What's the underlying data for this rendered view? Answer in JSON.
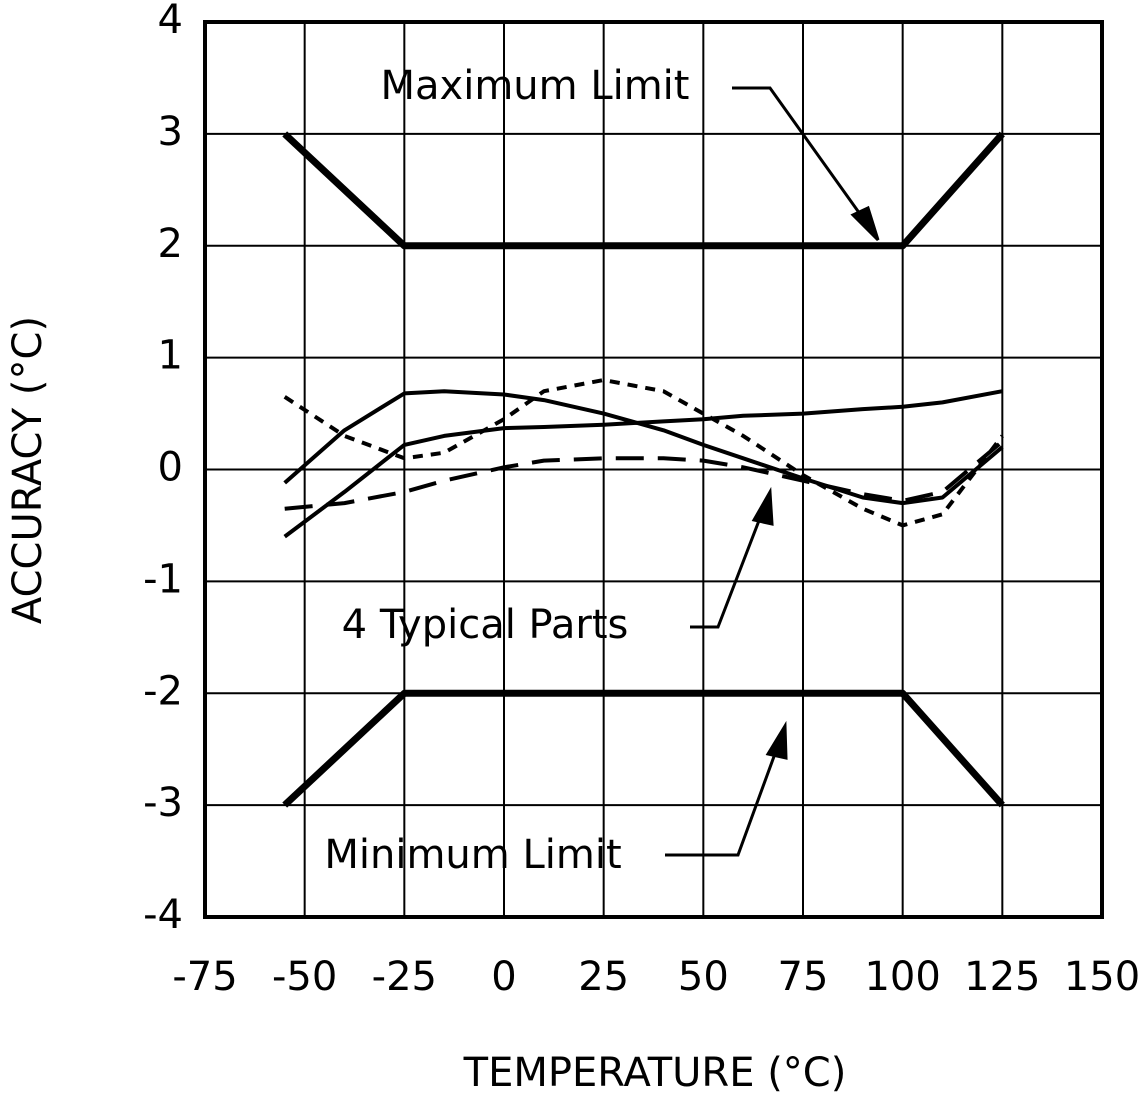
{
  "chart_data": {
    "type": "line",
    "xlabel": "TEMPERATURE (°C)",
    "ylabel": "ACCURACY (°C)",
    "xlim": [
      -75,
      150
    ],
    "ylim": [
      -4,
      4
    ],
    "xticks": [
      -75,
      -50,
      -25,
      0,
      25,
      50,
      75,
      100,
      125,
      150
    ],
    "yticks": [
      -4,
      -3,
      -2,
      -1,
      0,
      1,
      2,
      3,
      4
    ],
    "grid": true,
    "series": [
      {
        "color": "#000000",
        "dash": "solid",
        "width": 7,
        "x": [
          -55,
          -25,
          100,
          125
        ],
        "values": [
          3,
          2,
          2,
          3
        ]
      },
      {
        "color": "#000000",
        "dash": "solid",
        "width": 7,
        "x": [
          -55,
          -25,
          100,
          125
        ],
        "values": [
          -3,
          -2,
          -2,
          -3
        ]
      },
      {
        "color": "#000000",
        "dash": "solid",
        "width": 4,
        "x": [
          -55,
          -40,
          -25,
          -15,
          0,
          10,
          25,
          40,
          50,
          60,
          75,
          90,
          100,
          110,
          125
        ],
        "values": [
          -0.12,
          0.35,
          0.68,
          0.7,
          0.67,
          0.62,
          0.5,
          0.35,
          0.22,
          0.1,
          -0.08,
          -0.25,
          -0.3,
          -0.25,
          0.2
        ]
      },
      {
        "color": "#000000",
        "dash": "solid",
        "width": 4,
        "x": [
          -55,
          -40,
          -25,
          -15,
          0,
          10,
          25,
          40,
          50,
          60,
          75,
          90,
          100,
          110,
          125
        ],
        "values": [
          -0.6,
          -0.2,
          0.22,
          0.3,
          0.37,
          0.38,
          0.4,
          0.43,
          0.45,
          0.48,
          0.5,
          0.54,
          0.56,
          0.6,
          0.7
        ]
      },
      {
        "color": "#000000",
        "dash": "short",
        "width": 4,
        "x": [
          -55,
          -40,
          -25,
          -15,
          0,
          10,
          25,
          40,
          50,
          60,
          75,
          90,
          100,
          110,
          125
        ],
        "values": [
          0.65,
          0.3,
          0.1,
          0.15,
          0.45,
          0.7,
          0.8,
          0.7,
          0.5,
          0.3,
          -0.05,
          -0.35,
          -0.5,
          -0.4,
          0.3
        ]
      },
      {
        "color": "#000000",
        "dash": "long",
        "width": 4,
        "x": [
          -55,
          -40,
          -25,
          -15,
          0,
          10,
          25,
          40,
          50,
          60,
          75,
          90,
          100,
          110,
          125
        ],
        "values": [
          -0.35,
          -0.3,
          -0.2,
          -0.1,
          0.02,
          0.08,
          0.1,
          0.1,
          0.08,
          0.02,
          -0.1,
          -0.22,
          -0.28,
          -0.2,
          0.25
        ]
      }
    ],
    "annotations": [
      "Maximum Limit",
      "4 Typical Parts",
      "Minimum Limit"
    ]
  }
}
